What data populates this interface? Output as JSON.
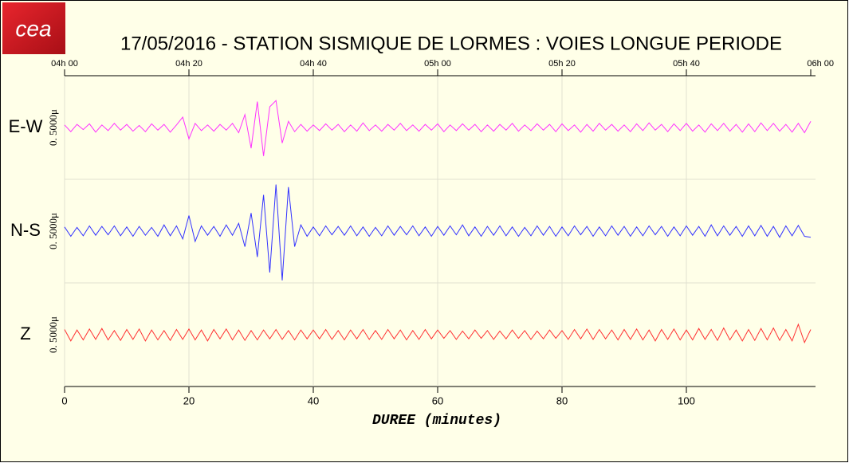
{
  "chart_data": {
    "type": "line",
    "logo": "cea",
    "title": "17/05/2016  -  STATION SISMIQUE DE LORMES : VOIES LONGUE PERIODE",
    "x_label": "DUREE (minutes)",
    "xlim": [
      0,
      120
    ],
    "xticks": [
      0,
      20,
      40,
      60,
      80,
      100
    ],
    "top_xticks": [
      {
        "value": 0,
        "label": "04h 00"
      },
      {
        "value": 20,
        "label": "04h 20"
      },
      {
        "value": 40,
        "label": "04h 40"
      },
      {
        "value": 60,
        "label": "05h 00"
      },
      {
        "value": 80,
        "label": "05h 20"
      },
      {
        "value": 100,
        "label": "05h 40"
      },
      {
        "value": 120,
        "label": "06h 00"
      }
    ],
    "ylim": [
      -1,
      1
    ],
    "grid": true,
    "x": [
      0,
      1,
      2,
      3,
      4,
      5,
      6,
      7,
      8,
      9,
      10,
      11,
      12,
      13,
      14,
      15,
      16,
      17,
      18,
      19,
      20,
      21,
      22,
      23,
      24,
      25,
      26,
      27,
      28,
      29,
      30,
      31,
      32,
      33,
      34,
      35,
      36,
      37,
      38,
      39,
      40,
      41,
      42,
      43,
      44,
      45,
      46,
      47,
      48,
      49,
      50,
      51,
      52,
      53,
      54,
      55,
      56,
      57,
      58,
      59,
      60,
      61,
      62,
      63,
      64,
      65,
      66,
      67,
      68,
      69,
      70,
      71,
      72,
      73,
      74,
      75,
      76,
      77,
      78,
      79,
      80,
      81,
      82,
      83,
      84,
      85,
      86,
      87,
      88,
      89,
      90,
      91,
      92,
      93,
      94,
      95,
      96,
      97,
      98,
      99,
      100,
      101,
      102,
      103,
      104,
      105,
      106,
      107,
      108,
      109,
      110,
      111,
      112,
      113,
      114,
      115,
      116,
      117,
      118,
      119,
      120
    ],
    "series": [
      {
        "name": "E-W",
        "scale_label": "0. 5000μ",
        "color": "#ff33ff",
        "values": [
          0.05,
          -0.08,
          0.06,
          -0.04,
          0.07,
          -0.09,
          0.05,
          -0.06,
          0.08,
          -0.05,
          0.06,
          -0.07,
          0.04,
          -0.08,
          0.07,
          -0.05,
          0.06,
          -0.09,
          0.05,
          0.2,
          -0.22,
          0.08,
          -0.06,
          0.05,
          -0.07,
          0.06,
          -0.05,
          0.08,
          -0.1,
          0.25,
          -0.4,
          0.5,
          -0.55,
          0.4,
          0.52,
          -0.3,
          0.12,
          -0.08,
          0.06,
          -0.07,
          0.05,
          -0.06,
          0.07,
          -0.05,
          0.06,
          -0.08,
          0.05,
          -0.07,
          0.09,
          -0.06,
          0.05,
          -0.07,
          0.06,
          -0.05,
          0.08,
          -0.06,
          0.05,
          -0.07,
          0.06,
          -0.05,
          0.07,
          -0.08,
          0.05,
          -0.06,
          0.07,
          -0.05,
          0.06,
          -0.08,
          0.05,
          -0.07,
          0.06,
          -0.05,
          0.08,
          -0.07,
          0.05,
          -0.06,
          0.07,
          -0.05,
          0.06,
          -0.08,
          0.07,
          -0.06,
          0.05,
          -0.09,
          0.06,
          -0.07,
          0.08,
          -0.05,
          0.06,
          -0.07,
          0.05,
          -0.08,
          0.07,
          -0.06,
          0.09,
          -0.05,
          0.06,
          -0.08,
          0.07,
          -0.06,
          0.08,
          -0.07,
          0.05,
          -0.09,
          0.07,
          -0.06,
          0.08,
          -0.07,
          0.06,
          -0.09,
          0.07,
          -0.08,
          0.09,
          -0.06,
          0.08,
          -0.07,
          0.06,
          -0.09,
          0.08,
          -0.1,
          0.12
        ]
      },
      {
        "name": "N-S",
        "scale_label": "0. 5000μ",
        "color": "#3333ff",
        "values": [
          0.08,
          -0.1,
          0.07,
          -0.09,
          0.1,
          -0.08,
          0.09,
          -0.07,
          0.1,
          -0.09,
          0.08,
          -0.1,
          0.09,
          -0.08,
          0.07,
          -0.1,
          0.12,
          -0.09,
          0.1,
          -0.15,
          0.3,
          -0.2,
          0.1,
          -0.08,
          0.09,
          -0.1,
          0.12,
          -0.08,
          0.15,
          -0.3,
          0.35,
          -0.5,
          0.7,
          -0.8,
          0.9,
          -0.95,
          0.85,
          -0.3,
          0.12,
          -0.1,
          0.08,
          -0.09,
          0.1,
          -0.07,
          0.09,
          -0.08,
          0.1,
          -0.09,
          0.08,
          -0.1,
          0.07,
          -0.09,
          0.1,
          -0.08,
          0.09,
          -0.07,
          0.1,
          -0.09,
          0.08,
          -0.1,
          0.09,
          -0.08,
          0.1,
          -0.07,
          0.12,
          -0.09,
          0.08,
          -0.1,
          0.09,
          -0.08,
          0.1,
          -0.09,
          0.08,
          -0.1,
          0.07,
          -0.09,
          0.1,
          -0.08,
          0.09,
          -0.1,
          0.08,
          -0.09,
          0.1,
          -0.07,
          0.09,
          -0.1,
          0.08,
          -0.09,
          0.1,
          -0.08,
          0.09,
          -0.1,
          0.08,
          -0.09,
          0.1,
          -0.07,
          0.09,
          -0.1,
          0.08,
          -0.09,
          0.1,
          -0.08,
          0.09,
          -0.1,
          0.12,
          -0.09,
          0.1,
          -0.08,
          0.09,
          -0.1,
          0.1,
          -0.09,
          0.11,
          -0.1,
          0.09,
          -0.12,
          0.1,
          -0.09,
          0.11,
          -0.1,
          -0.12
        ]
      },
      {
        "name": "Z",
        "scale_label": "0. 5000μ",
        "color": "#ff3333",
        "values": [
          0.1,
          -0.12,
          0.09,
          -0.1,
          0.11,
          -0.09,
          0.12,
          -0.1,
          0.08,
          -0.11,
          0.1,
          -0.09,
          0.11,
          -0.12,
          0.09,
          -0.1,
          0.08,
          -0.11,
          0.1,
          -0.09,
          0.11,
          -0.1,
          0.09,
          -0.12,
          0.1,
          -0.08,
          0.11,
          -0.1,
          0.09,
          -0.11,
          0.08,
          -0.1,
          0.09,
          -0.08,
          0.1,
          -0.09,
          0.08,
          -0.1,
          0.09,
          -0.08,
          0.09,
          -0.08,
          0.1,
          -0.09,
          0.08,
          -0.1,
          0.09,
          -0.08,
          0.1,
          -0.09,
          0.08,
          -0.09,
          0.1,
          -0.08,
          0.09,
          -0.1,
          0.08,
          -0.09,
          0.1,
          -0.08,
          0.09,
          -0.07,
          0.08,
          -0.09,
          0.07,
          -0.08,
          0.09,
          -0.07,
          0.08,
          -0.09,
          0.07,
          -0.08,
          0.09,
          -0.07,
          0.08,
          -0.09,
          0.07,
          -0.08,
          0.09,
          -0.07,
          0.08,
          -0.09,
          0.1,
          -0.08,
          0.11,
          -0.09,
          0.1,
          -0.08,
          0.09,
          -0.1,
          0.1,
          -0.09,
          0.11,
          -0.1,
          0.09,
          -0.12,
          0.1,
          -0.09,
          0.11,
          -0.1,
          0.09,
          -0.1,
          0.12,
          -0.09,
          0.1,
          -0.11,
          0.13,
          -0.1,
          0.09,
          -0.12,
          0.1,
          -0.11,
          0.12,
          -0.1,
          0.13,
          -0.11,
          0.1,
          -0.12,
          0.2,
          -0.15,
          0.1
        ]
      }
    ]
  }
}
